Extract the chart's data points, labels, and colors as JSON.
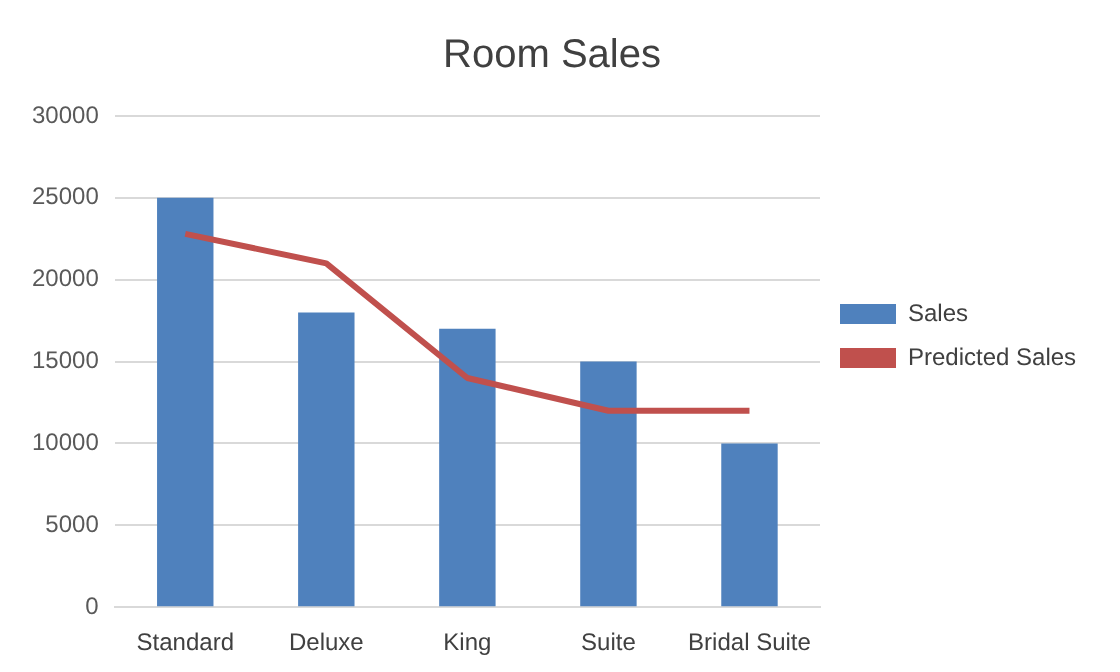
{
  "chart_data": {
    "type": "bar",
    "title": "Room Sales",
    "categories": [
      "Standard",
      "Deluxe",
      "King",
      "Suite",
      "Bridal Suite"
    ],
    "series": [
      {
        "name": "Sales",
        "color": "#4f81bd",
        "values": [
          25000,
          18000,
          17000,
          15000,
          10000
        ]
      },
      {
        "name": "Predicted Sales",
        "type": "line",
        "color": "#c0504d",
        "values": [
          22800,
          21000,
          14000,
          12000,
          12000
        ]
      }
    ],
    "ylim": [
      0,
      30000
    ],
    "yticks": [
      0,
      5000,
      10000,
      15000,
      20000,
      25000,
      30000
    ],
    "grid": "y",
    "legend": "right",
    "marker": "none"
  }
}
